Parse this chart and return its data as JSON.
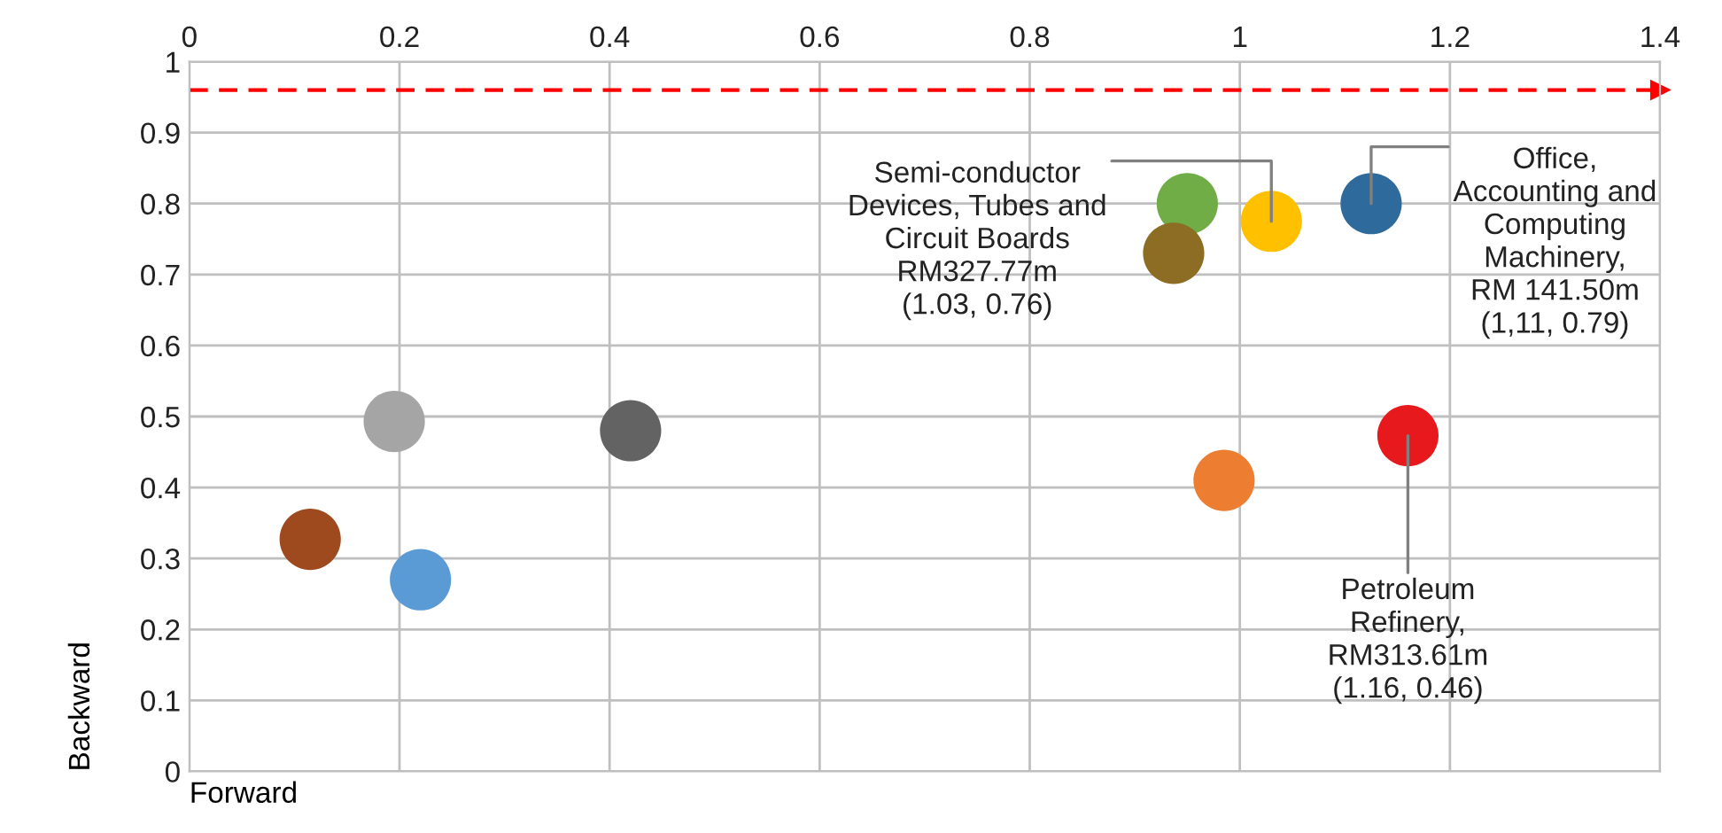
{
  "chart_data": {
    "type": "scatter",
    "xlabel": "Forward",
    "ylabel": "Backward",
    "x": [
      0.115,
      0.22,
      0.195,
      0.42,
      0.95,
      0.937,
      1.03,
      1.125,
      0.985,
      1.16
    ],
    "values": [
      0.327,
      0.27,
      0.493,
      0.48,
      0.8,
      0.73,
      0.775,
      0.8,
      0.41,
      0.473
    ],
    "colors": [
      "#9e4a1e",
      "#5b9bd5",
      "#a5a5a5",
      "#636363",
      "#70ad47",
      "#8c6d23",
      "#ffc000",
      "#2e6a9b",
      "#ed7d31",
      "#e8191c"
    ],
    "marker": "circle",
    "xlim": [
      0,
      1.4
    ],
    "ylim": [
      0,
      1
    ],
    "xticks": [
      0,
      0.2,
      0.4,
      0.6,
      0.8,
      1,
      1.2,
      1.4
    ],
    "yticks": [
      0,
      0.1,
      0.2,
      0.3,
      0.4,
      0.5,
      0.6,
      0.7,
      0.8,
      0.9,
      1
    ],
    "grid": true,
    "ref_lines": [
      {
        "axis": "y",
        "value": 0.96,
        "color": "#ff0000",
        "line_style": "dashed"
      }
    ],
    "annotations": [
      {
        "text": "Semi-conductor\nDevices, Tubes and\nCircuit Boards\nRM327.77m\n(1.03, 0.76)",
        "x": 1.03,
        "y": 0.775
      },
      {
        "text": "Office,\nAccounting and\nComputing\nMachinery,\nRM 141.50m\n(1,11, 0.79)",
        "x": 1.125,
        "y": 0.8
      },
      {
        "text": "Petroleum\nRefinery,\nRM313.61m\n(1.16, 0.46)",
        "x": 1.16,
        "y": 0.473
      }
    ]
  }
}
